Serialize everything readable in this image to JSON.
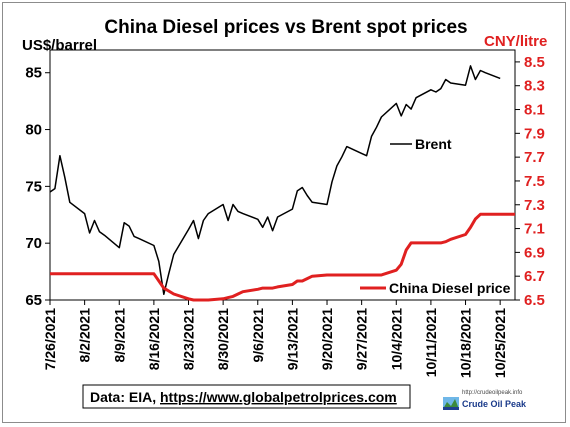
{
  "chart_data": {
    "type": "line",
    "title": "China Diesel prices vs Brent spot prices",
    "ylabel": "US$/barrel",
    "y2label": "CNY/litre",
    "ylim": [
      65,
      87
    ],
    "y2lim": [
      6.5,
      8.6
    ],
    "yticks": [
      "65",
      "70",
      "75",
      "80",
      "85"
    ],
    "y2ticks": [
      "6.5",
      "6.7",
      "6.9",
      "7.1",
      "7.3",
      "7.5",
      "7.7",
      "7.9",
      "8.1",
      "8.3",
      "8.5"
    ],
    "xticks": [
      "7/26/2021",
      "8/2/2021",
      "8/9/2021",
      "8/16/2021",
      "8/23/2021",
      "8/30/2021",
      "9/6/2021",
      "9/13/2021",
      "9/20/2021",
      "9/27/2021",
      "10/4/2021",
      "10/11/2021",
      "10/18/2021",
      "10/25/2021"
    ],
    "grid": false,
    "series": [
      {
        "name": "Brent",
        "axis": "left",
        "color": "#000000",
        "x": [
          "2021-07-26",
          "2021-07-27",
          "2021-07-28",
          "2021-07-29",
          "2021-07-30",
          "2021-08-02",
          "2021-08-03",
          "2021-08-04",
          "2021-08-05",
          "2021-08-06",
          "2021-08-09",
          "2021-08-10",
          "2021-08-11",
          "2021-08-12",
          "2021-08-13",
          "2021-08-16",
          "2021-08-17",
          "2021-08-18",
          "2021-08-19",
          "2021-08-20",
          "2021-08-23",
          "2021-08-24",
          "2021-08-25",
          "2021-08-26",
          "2021-08-27",
          "2021-08-30",
          "2021-08-31",
          "2021-09-01",
          "2021-09-02",
          "2021-09-03",
          "2021-09-06",
          "2021-09-07",
          "2021-09-08",
          "2021-09-09",
          "2021-09-10",
          "2021-09-13",
          "2021-09-14",
          "2021-09-15",
          "2021-09-16",
          "2021-09-17",
          "2021-09-20",
          "2021-09-21",
          "2021-09-22",
          "2021-09-23",
          "2021-09-24",
          "2021-09-27",
          "2021-09-28",
          "2021-09-29",
          "2021-09-30",
          "2021-10-01",
          "2021-10-04",
          "2021-10-05",
          "2021-10-06",
          "2021-10-07",
          "2021-10-08",
          "2021-10-11",
          "2021-10-12",
          "2021-10-13",
          "2021-10-14",
          "2021-10-15",
          "2021-10-18",
          "2021-10-19",
          "2021-10-20",
          "2021-10-21",
          "2021-10-22",
          "2021-10-25"
        ],
        "values": [
          74.5,
          74.8,
          77.7,
          75.8,
          73.6,
          72.6,
          70.9,
          72.0,
          71.0,
          70.7,
          69.6,
          71.8,
          71.5,
          70.6,
          70.4,
          69.8,
          68.4,
          65.5,
          67.3,
          69.0,
          71.2,
          72.0,
          70.4,
          72.0,
          72.6,
          73.4,
          72.0,
          73.4,
          72.8,
          72.6,
          72.1,
          71.4,
          72.3,
          71.1,
          72.3,
          73.0,
          74.6,
          74.9,
          74.2,
          73.6,
          73.4,
          75.4,
          76.8,
          77.6,
          78.5,
          77.9,
          77.7,
          79.4,
          80.2,
          81.1,
          82.3,
          81.2,
          82.2,
          81.8,
          82.8,
          83.5,
          83.3,
          83.6,
          84.4,
          84.1,
          83.9,
          85.6,
          84.4,
          85.2,
          85.0,
          84.5
        ],
        "label": "Brent"
      },
      {
        "name": "China Diesel price",
        "axis": "right",
        "color": "#e02020",
        "x": [
          "2021-07-26",
          "2021-08-16",
          "2021-08-18",
          "2021-08-20",
          "2021-08-23",
          "2021-08-24",
          "2021-08-25",
          "2021-08-26",
          "2021-08-27",
          "2021-08-30",
          "2021-08-31",
          "2021-09-01",
          "2021-09-02",
          "2021-09-03",
          "2021-09-06",
          "2021-09-07",
          "2021-09-08",
          "2021-09-09",
          "2021-09-10",
          "2021-09-13",
          "2021-09-14",
          "2021-09-15",
          "2021-09-16",
          "2021-09-17",
          "2021-09-20",
          "2021-09-27",
          "2021-10-01",
          "2021-10-04",
          "2021-10-05",
          "2021-10-06",
          "2021-10-07",
          "2021-10-08",
          "2021-10-11",
          "2021-10-12",
          "2021-10-13",
          "2021-10-14",
          "2021-10-15",
          "2021-10-18",
          "2021-10-19",
          "2021-10-20",
          "2021-10-21",
          "2021-10-22",
          "2021-10-25",
          "2021-10-28"
        ],
        "values": [
          6.72,
          6.72,
          6.6,
          6.55,
          6.51,
          6.5,
          6.5,
          6.5,
          6.5,
          6.51,
          6.52,
          6.53,
          6.55,
          6.57,
          6.59,
          6.6,
          6.6,
          6.6,
          6.61,
          6.63,
          6.66,
          6.66,
          6.68,
          6.7,
          6.71,
          6.71,
          6.71,
          6.75,
          6.8,
          6.92,
          6.98,
          6.98,
          6.98,
          6.98,
          6.98,
          6.99,
          7.01,
          7.05,
          7.11,
          7.18,
          7.22,
          7.22,
          7.22,
          7.22
        ],
        "label": "China Diesel price"
      }
    ]
  },
  "source": {
    "prefix": "Data: EIA,",
    "link": "https://www.globalpetrolprices.com"
  },
  "logo": {
    "url": "http://crudeoilpeak.info",
    "name": "Crude Oil Peak"
  }
}
